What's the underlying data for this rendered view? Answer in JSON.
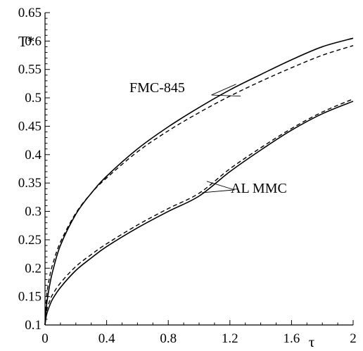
{
  "chart_data": {
    "type": "line",
    "title": "",
    "xlabel": "τ",
    "ylabel": "T*",
    "xlim": [
      0,
      2
    ],
    "ylim": [
      0.1,
      0.65
    ],
    "x_ticks": [
      "0",
      "0.4",
      "0.8",
      "1.2",
      "1.6",
      "2"
    ],
    "y_ticks": [
      "0.1",
      "0.15",
      "0.2",
      "0.25",
      "0.3",
      "0.35",
      "0.4",
      "0.45",
      "0.5",
      "0.55",
      "0.6",
      "0.65"
    ],
    "grid": false,
    "annotations": [
      "FMC-845",
      "AL MMC"
    ],
    "series": [
      {
        "style": "solid",
        "x": [
          0,
          0.01,
          0.03,
          0.05,
          0.1,
          0.2,
          0.3,
          0.4,
          0.6,
          0.8,
          1.0,
          1.2,
          1.4,
          1.6,
          1.8,
          2.0
        ],
        "values": [
          0.1,
          0.135,
          0.17,
          0.195,
          0.24,
          0.295,
          0.332,
          0.362,
          0.41,
          0.449,
          0.483,
          0.514,
          0.541,
          0.567,
          0.59,
          0.605
        ]
      },
      {
        "style": "dashed",
        "x": [
          0,
          0.01,
          0.03,
          0.05,
          0.1,
          0.2,
          0.3,
          0.4,
          0.6,
          0.8,
          1.0,
          1.2,
          1.4,
          1.6,
          1.8,
          2.0
        ],
        "values": [
          0.1,
          0.15,
          0.185,
          0.207,
          0.246,
          0.297,
          0.332,
          0.359,
          0.405,
          0.442,
          0.474,
          0.503,
          0.529,
          0.553,
          0.575,
          0.592
        ]
      },
      {
        "style": "solid",
        "x": [
          0,
          0.01,
          0.03,
          0.05,
          0.1,
          0.2,
          0.3,
          0.4,
          0.6,
          0.8,
          1.0,
          1.2,
          1.4,
          1.6,
          1.8,
          2.0
        ],
        "values": [
          0.1,
          0.118,
          0.134,
          0.146,
          0.166,
          0.196,
          0.218,
          0.238,
          0.271,
          0.3,
          0.327,
          0.37,
          0.408,
          0.443,
          0.472,
          0.494
        ]
      },
      {
        "style": "dashed",
        "x": [
          0,
          0.01,
          0.03,
          0.05,
          0.1,
          0.2,
          0.3,
          0.4,
          0.6,
          0.8,
          1.0,
          1.2,
          1.4,
          1.6,
          1.8,
          2.0
        ],
        "values": [
          0.1,
          0.125,
          0.142,
          0.154,
          0.174,
          0.203,
          0.224,
          0.243,
          0.276,
          0.305,
          0.332,
          0.375,
          0.412,
          0.446,
          0.475,
          0.498
        ]
      }
    ]
  }
}
